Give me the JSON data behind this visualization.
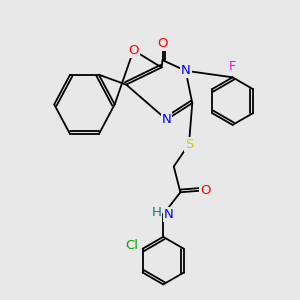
{
  "background_color": "#e8e8e8",
  "atom_colors": {
    "C": "#000000",
    "N": "#0000ff",
    "O": "#ff0000",
    "S": "#cccc00",
    "F": "#ff00ff",
    "Cl": "#00aa00",
    "H": "#008080"
  },
  "bond_color": "#000000",
  "lw": 1.3
}
